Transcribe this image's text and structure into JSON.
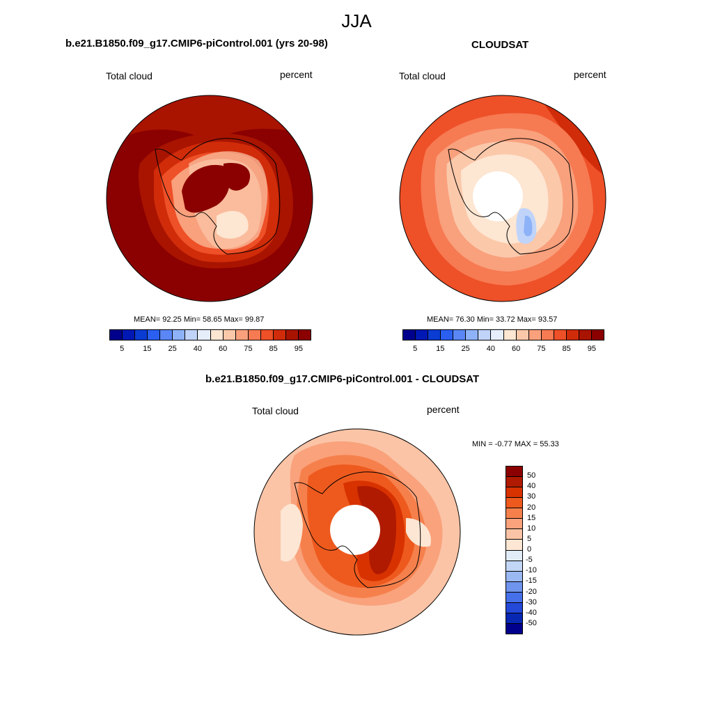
{
  "figure": {
    "title": "JJA"
  },
  "panel_left": {
    "case_title": "b.e21.B1850.f09_g17.CMIP6-piControl.001 (yrs 20-98)",
    "variable": "Total cloud",
    "units": "percent",
    "stats": "MEAN=  92.25  Min=  58.65  Max=  99.87"
  },
  "panel_right": {
    "case_title": "CLOUDSAT",
    "variable": "Total cloud",
    "units": "percent",
    "stats": "MEAN=  76.30  Min=  33.72  Max=  93.57"
  },
  "panel_diff": {
    "case_title": "b.e21.B1850.f09_g17.CMIP6-piControl.001 - CLOUDSAT",
    "variable": "Total cloud",
    "units": "percent",
    "stats": "MIN =  -0.77 MAX =  55.33"
  },
  "colorbar_main": {
    "labels": [
      "5",
      "15",
      "25",
      "40",
      "60",
      "75",
      "85",
      "95"
    ],
    "colors": [
      "#00008c",
      "#0018b4",
      "#0a3cd2",
      "#2a5ff0",
      "#5a87f5",
      "#8eb2f8",
      "#c0d4fa",
      "#e6eefc",
      "#fde6d2",
      "#fbc8aa",
      "#f9a07c",
      "#f67a52",
      "#ee5028",
      "#d02c0a",
      "#a81400",
      "#8b0000"
    ]
  },
  "colorbar_diff": {
    "labels": [
      "50",
      "40",
      "30",
      "20",
      "15",
      "10",
      "5",
      "0",
      "-5",
      "-10",
      "-15",
      "-20",
      "-30",
      "-40",
      "-50"
    ],
    "colors": [
      "#8b0000",
      "#b01a00",
      "#d83200",
      "#ee5a1e",
      "#f6804c",
      "#f9a27c",
      "#fbc4a6",
      "#fde6d4",
      "#e2ecf8",
      "#c2d6f6",
      "#9ab8f2",
      "#6f94ee",
      "#4670ea",
      "#2448d8",
      "#0828b4",
      "#00008c"
    ]
  }
}
